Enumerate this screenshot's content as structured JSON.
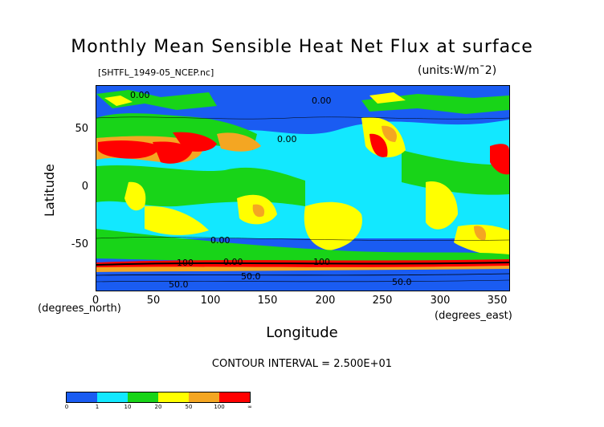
{
  "chart_data": {
    "type": "heatmap",
    "title": "Monthly Mean Sensible Heat Net Flux at surface",
    "file_label": "[SHTFL_1949-05_NCEP.nc]",
    "units": "(units:W/m^2)",
    "xlabel": "Longitude",
    "ylabel": "Latitude",
    "x_unit_label": "(degrees_east)",
    "y_unit_label": "(degrees_north)",
    "xlim": [
      0,
      360
    ],
    "ylim": [
      -90,
      90
    ],
    "x_ticks": [
      0,
      50,
      100,
      150,
      200,
      250,
      300,
      350
    ],
    "y_ticks": [
      50,
      0,
      -50
    ],
    "contour_interval": "CONTOUR INTERVAL = 2.500E+01",
    "contour_labels": [
      "0.00",
      "0.00",
      "0.00",
      "0.00",
      "0.00",
      "100",
      "50.0",
      "50.0",
      "50.0",
      "100"
    ],
    "legend": {
      "levels": [
        "0",
        "1",
        "10",
        "20",
        "50",
        "100",
        "∞"
      ],
      "colors": [
        "#1a5cf2",
        "#12e8ff",
        "#18d418",
        "#ffff00",
        "#f4a622",
        "#ff0000"
      ]
    }
  }
}
